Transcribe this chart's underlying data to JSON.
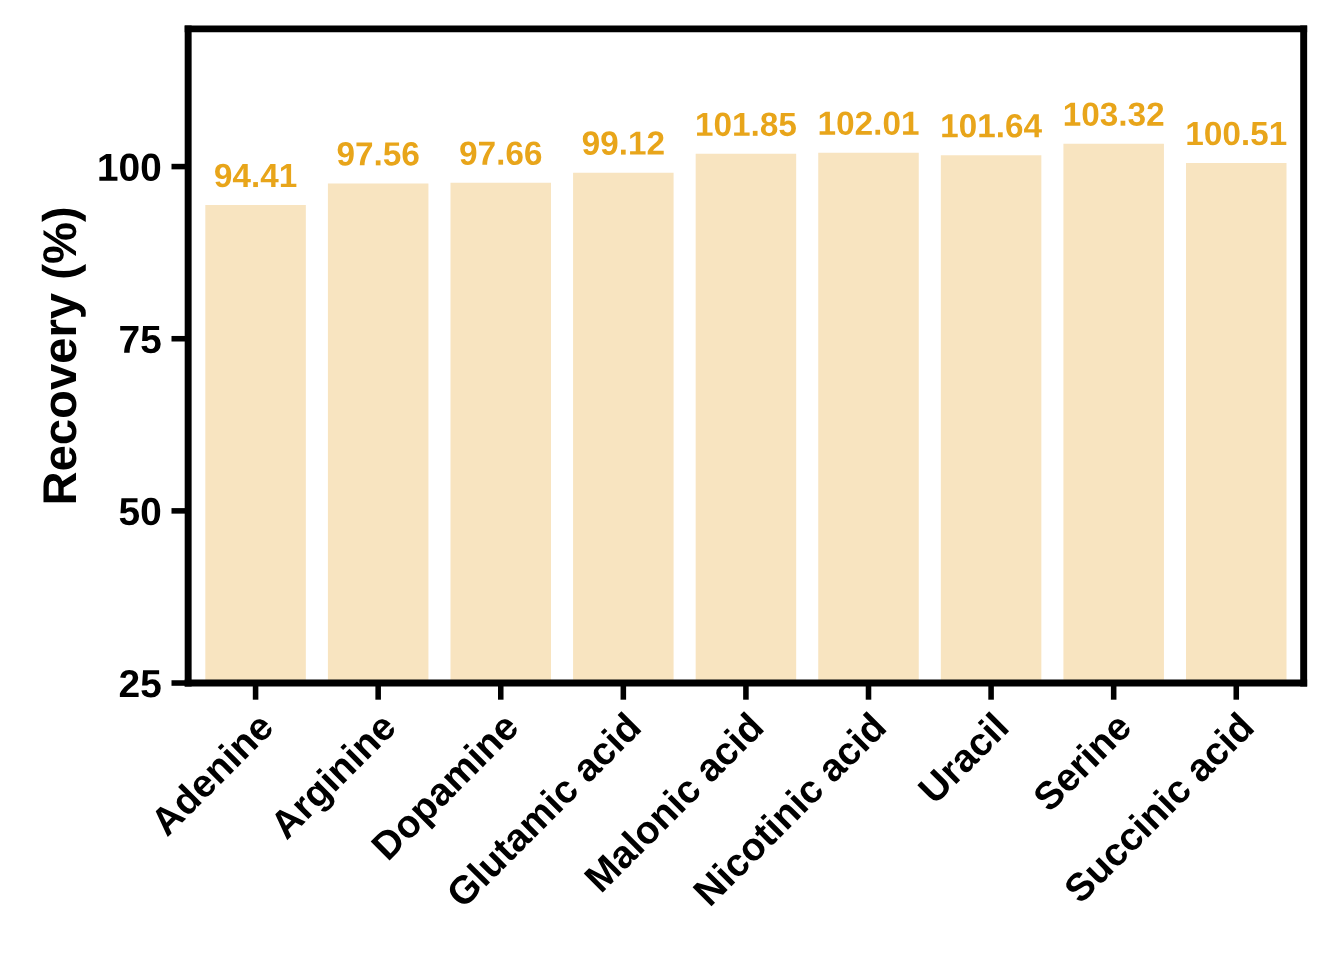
{
  "chart_data": {
    "type": "bar",
    "ylabel": "Recovery (%)",
    "categories": [
      "Adenine",
      "Arginine",
      "Dopamine",
      "Glutamic acid",
      "Malonic acid",
      "Nicotinic acid",
      "Uracil",
      "Serine",
      "Succinic acid"
    ],
    "values": [
      94.41,
      97.56,
      97.66,
      99.12,
      101.85,
      102.01,
      101.64,
      103.32,
      100.51
    ],
    "color": "#f8e4c0",
    "data_labels": true,
    "ylim": [
      25,
      120
    ],
    "yticks": [
      25,
      50,
      75,
      100
    ],
    "grid": false
  }
}
